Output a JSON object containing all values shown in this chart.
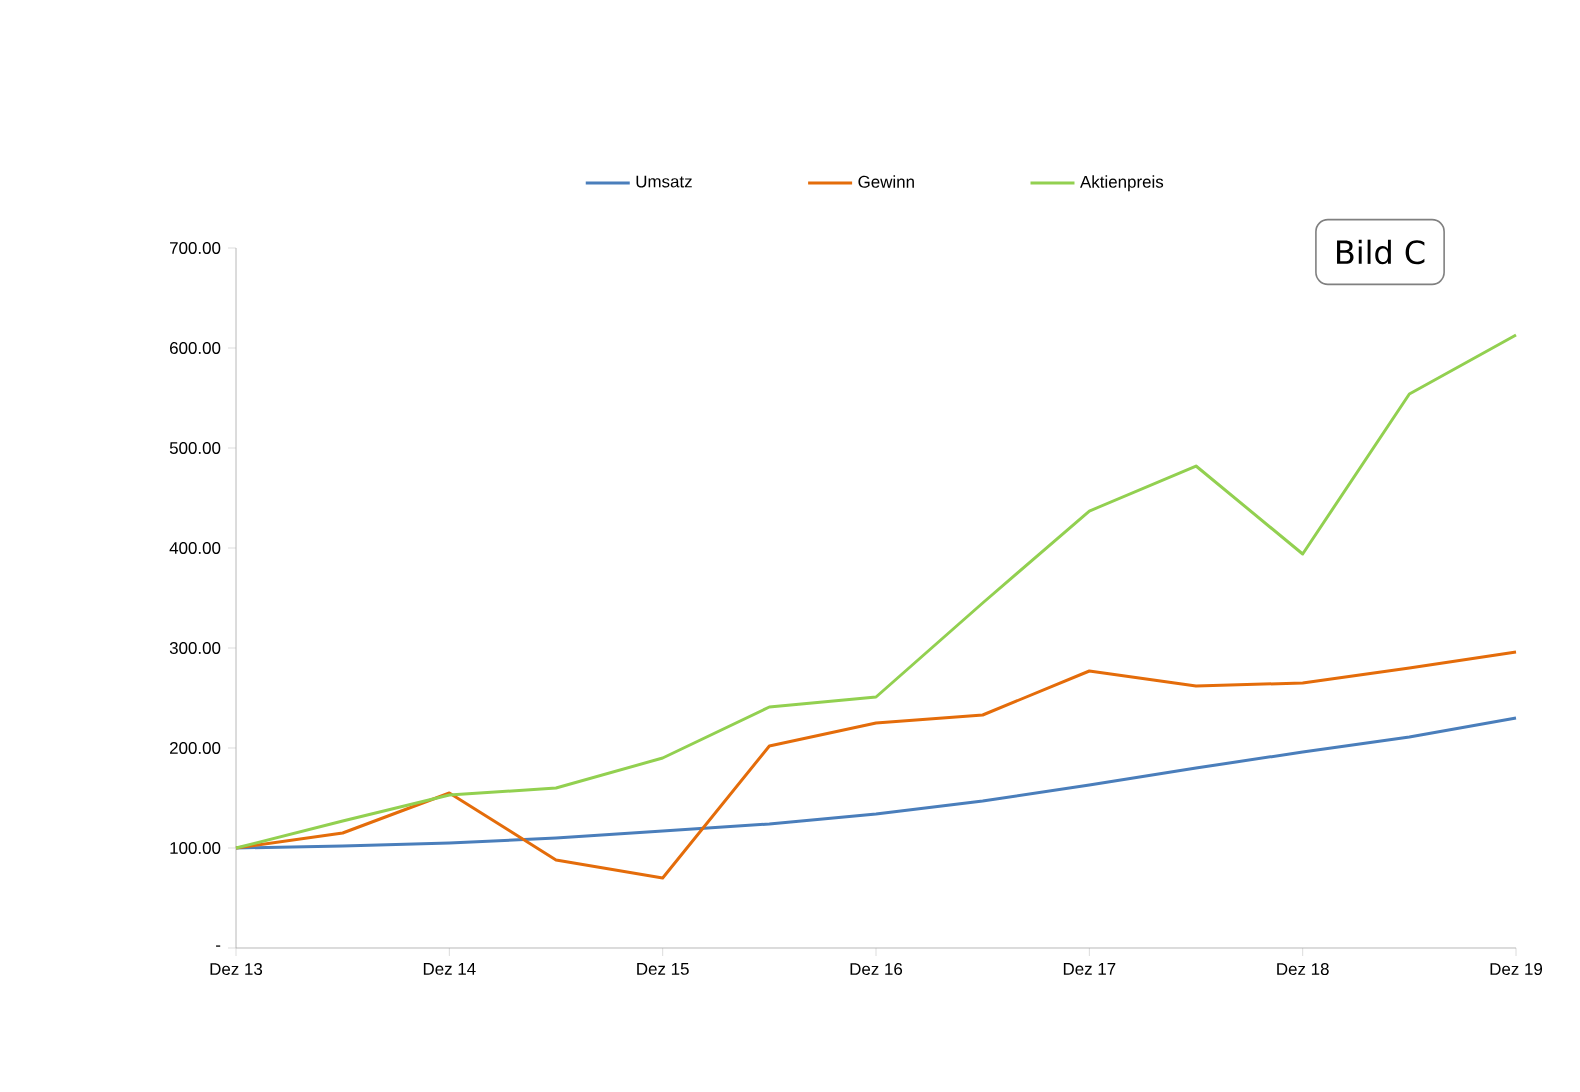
{
  "chart_data": {
    "type": "line",
    "categories": [
      "Dez 13",
      null,
      "Dez 14",
      null,
      "Dez 15",
      null,
      "Dez 16",
      null,
      "Dez 17",
      null,
      "Dez 18",
      null,
      "Dez 19"
    ],
    "series": [
      {
        "name": "Umsatz",
        "color": "#4a7ebb",
        "values": [
          100,
          102,
          105,
          110,
          117,
          124,
          134,
          147,
          163,
          180,
          196,
          211,
          230
        ]
      },
      {
        "name": "Gewinn",
        "color": "#e46c0a",
        "values": [
          100,
          115,
          155,
          88,
          70,
          202,
          225,
          233,
          277,
          262,
          265,
          280,
          296
        ]
      },
      {
        "name": "Aktienpreis",
        "color": "#92d050",
        "values": [
          100,
          127,
          153,
          160,
          190,
          241,
          251,
          345,
          437,
          482,
          394,
          554,
          613
        ]
      }
    ],
    "ylim": [
      0,
      700
    ],
    "yticks": [
      {
        "value": 0,
        "label": "-"
      },
      {
        "value": 100,
        "label": "100.00"
      },
      {
        "value": 200,
        "label": "200.00"
      },
      {
        "value": 300,
        "label": "300.00"
      },
      {
        "value": 400,
        "label": "400.00"
      },
      {
        "value": 500,
        "label": "500.00"
      },
      {
        "value": 600,
        "label": "600.00"
      },
      {
        "value": 700,
        "label": "700.00"
      }
    ],
    "legend": "top",
    "annotations": [
      "Bild C"
    ]
  }
}
